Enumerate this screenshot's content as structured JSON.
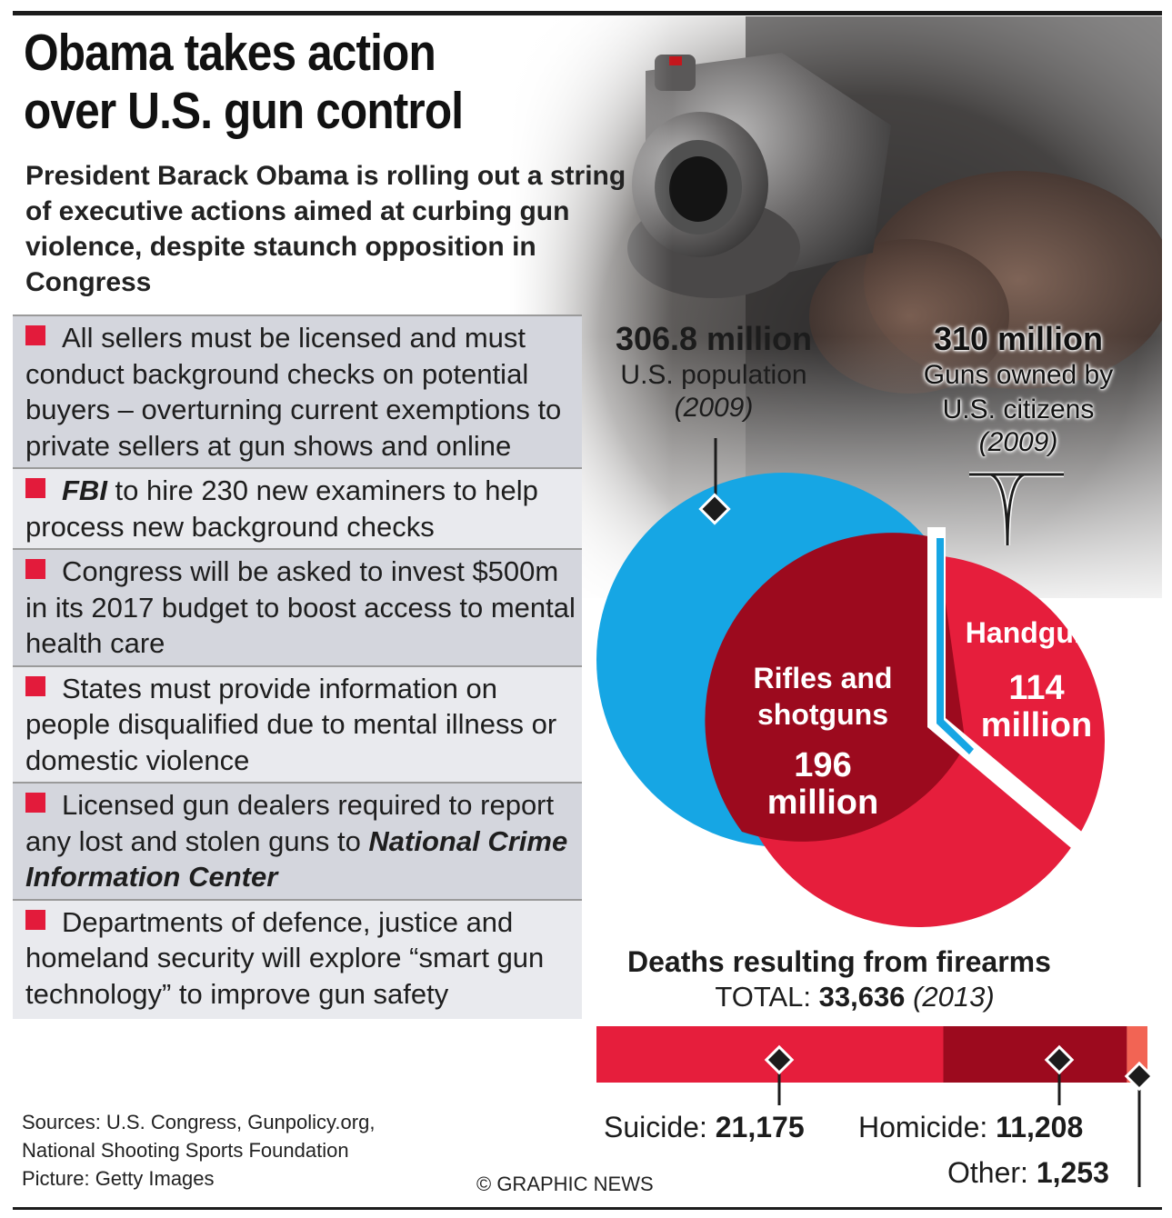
{
  "header": {
    "title_line1": "Obama takes action",
    "title_line2": "over U.S. gun control",
    "subtitle": "President Barack Obama is rolling out a string of executive actions aimed at curbing gun violence, despite staunch opposition in Congress"
  },
  "actions": [
    {
      "text": "All sellers must be licensed and must conduct background checks on potential buyers – overturning current exemptions to private sellers at gun shows and online"
    },
    {
      "em": "FBI",
      "text": " to hire 230 new examiners to help process new background checks"
    },
    {
      "text": "Congress will be asked to invest $500m in its 2017 budget to boost access to mental health care"
    },
    {
      "text": "States must provide information on people disqualified due to mental illness or domestic violence"
    },
    {
      "text": "Licensed gun dealers required to report any lost and stolen guns to ",
      "em": "National Crime Information Center",
      "em_after": true
    },
    {
      "text": "Departments of defence, justice and homeland security will explore “smart gun technology” to improve gun safety"
    }
  ],
  "population": {
    "value": "306.8 million",
    "label": "U.S. population",
    "year": "(2009)"
  },
  "guns": {
    "value": "310 million",
    "label_line1": "Guns owned by",
    "label_line2": "U.S. citizens",
    "year": "(2009)"
  },
  "venn": {
    "rifles_label_line1": "Rifles and",
    "rifles_label_line2": "shotguns",
    "rifles_value_line1": "196",
    "rifles_value_line2": "million",
    "handguns_label": "Handguns",
    "handguns_value_line1": "114",
    "handguns_value_line2": "million",
    "population_millions": 306.8,
    "guns_millions": 310,
    "rifles_millions": 196,
    "handguns_millions": 114
  },
  "deaths": {
    "title": "Deaths resulting from firearms",
    "total_prefix": "TOTAL: ",
    "total_value": "33,636",
    "total_year": "(2013)",
    "segments": [
      {
        "name": "Suicide",
        "label": "Suicide: ",
        "value_text": "21,175",
        "value": 21175,
        "color": "#e61e3c"
      },
      {
        "name": "Homicide",
        "label": "Homicide: ",
        "value_text": "11,208",
        "value": 11208,
        "color": "#9c0a1e"
      },
      {
        "name": "Other",
        "label": "Other: ",
        "value_text": "1,253",
        "value": 1253,
        "color": "#f26454"
      }
    ]
  },
  "sources": {
    "line1": "Sources: U.S. Congress, Gunpolicy.org,",
    "line2": "National Shooting Sports Foundation",
    "line3": "Picture: Getty Images"
  },
  "credit": "© GRAPHIC NEWS",
  "colors": {
    "accent_red": "#e31b3b",
    "dark_red": "#9c0a1e",
    "population_blue": "#16a6e4"
  }
}
